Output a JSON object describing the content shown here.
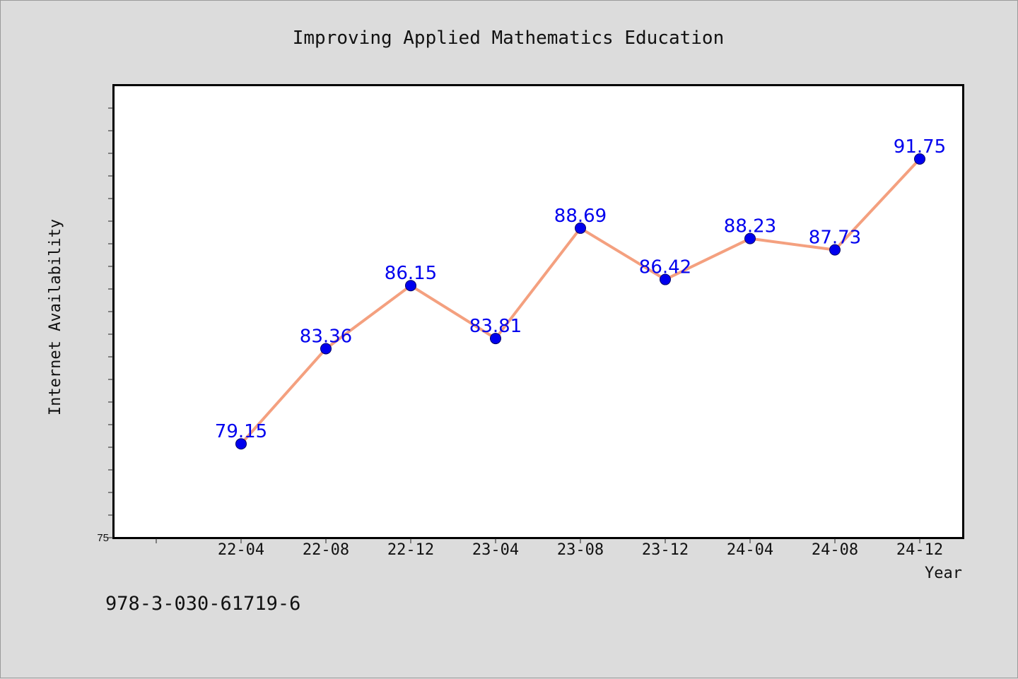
{
  "chart_data": {
    "type": "line",
    "title": "Improving Applied Mathematics Education",
    "xlabel": "Year",
    "ylabel": "Internet Availability",
    "categories": [
      "22-04",
      "22-08",
      "22-12",
      "23-04",
      "23-08",
      "23-12",
      "24-04",
      "24-08",
      "24-12"
    ],
    "values": [
      79.15,
      83.36,
      86.15,
      83.81,
      88.69,
      86.42,
      88.23,
      87.73,
      91.75
    ],
    "value_labels": [
      "79.15",
      "83.36",
      "86.15",
      "83.81",
      "88.69",
      "86.42",
      "88.23",
      "87.73",
      "91.75"
    ],
    "y_tick_labels": [
      "75"
    ],
    "ylim": [
      75,
      95
    ],
    "grid": false,
    "line_color": "#f4a07f",
    "marker_color": "#0000ee",
    "label_color": "#0000ee"
  },
  "footer": {
    "isbn": "978-3-030-61719-6"
  }
}
